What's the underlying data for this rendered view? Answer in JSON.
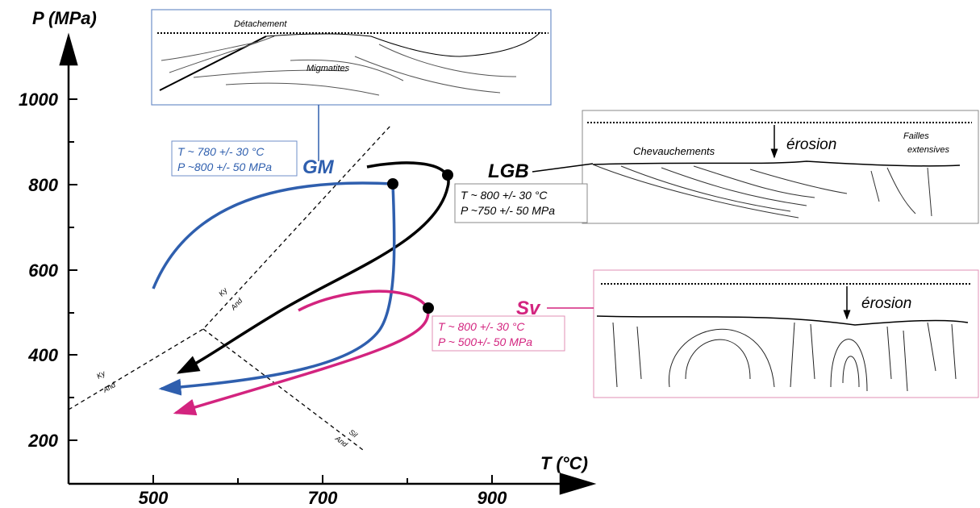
{
  "axes": {
    "y_label": "P (MPa)",
    "x_label": "T (°C)",
    "y_ticks": [
      "1000",
      "800",
      "600",
      "400",
      "200"
    ],
    "x_ticks": [
      "500",
      "700",
      "900"
    ]
  },
  "phase_labels": [
    "Ky",
    "And",
    "Ky",
    "And",
    "Sil",
    "And"
  ],
  "paths": [
    {
      "name": "GM",
      "t": "T ~ 780 +/- 30 °C",
      "p": "P ~800 +/- 50 MPa"
    },
    {
      "name": "LGB",
      "t": "T ~ 800 +/- 30 °C",
      "p": "P ~750 +/- 50 MPa"
    },
    {
      "name": "Sv",
      "t": "T ~ 800 +/- 30 °C",
      "p": "P ~ 500+/- 50 MPa"
    }
  ],
  "sketches": {
    "gm": [
      "Détachement",
      "Migmatites"
    ],
    "lgb": [
      "Chevauchements",
      "érosion",
      "Failles",
      "extensives"
    ],
    "sv": [
      "érosion"
    ]
  }
}
